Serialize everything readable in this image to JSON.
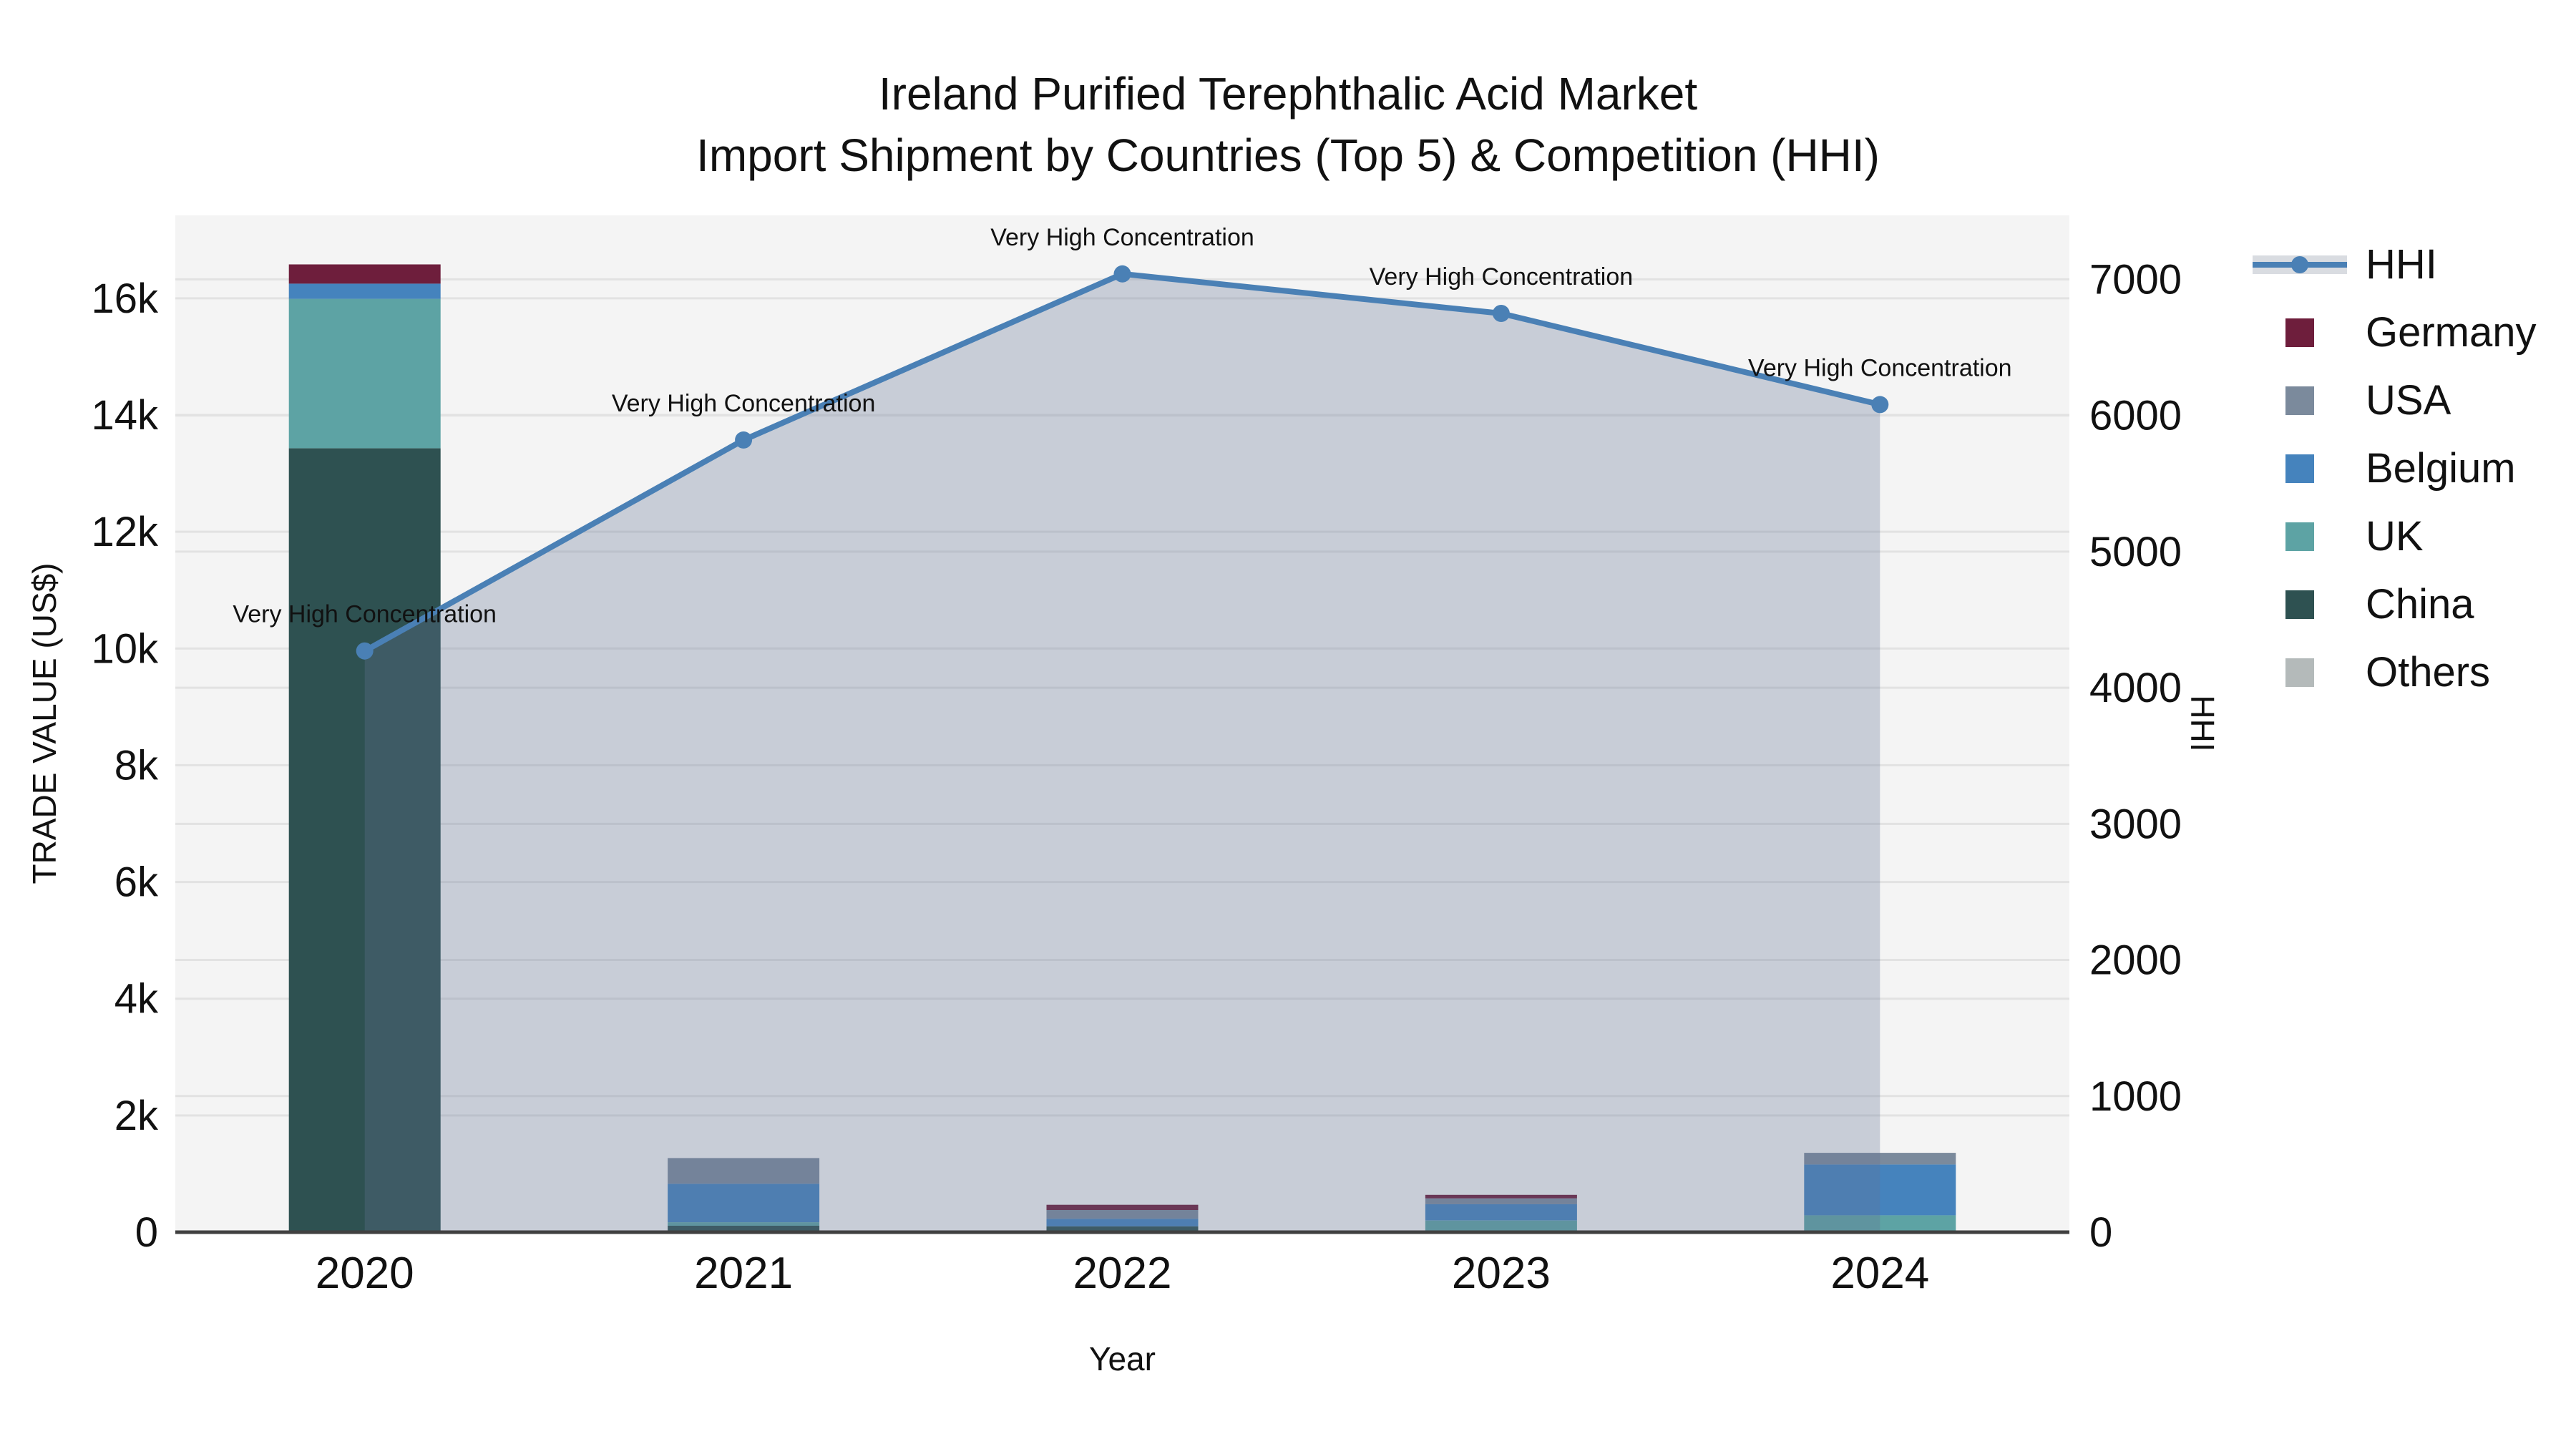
{
  "title": {
    "line1": "Ireland Purified Terephthalic Acid Market",
    "line2": "Import Shipment by Countries (Top 5) & Competition (HHI)"
  },
  "chart_data": {
    "type": "combo-stacked-bar-with-line-area",
    "x": [
      "2020",
      "2021",
      "2022",
      "2023",
      "2024"
    ],
    "xlabel": "Year",
    "left_axis": {
      "label": "TRADE VALUE (US$)",
      "max": 17420,
      "ticks": [
        {
          "v": 0,
          "label": "0"
        },
        {
          "v": 2000,
          "label": "2k"
        },
        {
          "v": 4000,
          "label": "4k"
        },
        {
          "v": 6000,
          "label": "6k"
        },
        {
          "v": 8000,
          "label": "8k"
        },
        {
          "v": 10000,
          "label": "10k"
        },
        {
          "v": 12000,
          "label": "12k"
        },
        {
          "v": 14000,
          "label": "14k"
        },
        {
          "v": 16000,
          "label": "16k"
        }
      ]
    },
    "right_axis": {
      "label": "HHI",
      "max": 7470,
      "ticks": [
        {
          "v": 0,
          "label": "0"
        },
        {
          "v": 1000,
          "label": "1000"
        },
        {
          "v": 2000,
          "label": "2000"
        },
        {
          "v": 3000,
          "label": "3000"
        },
        {
          "v": 4000,
          "label": "4000"
        },
        {
          "v": 5000,
          "label": "5000"
        },
        {
          "v": 6000,
          "label": "6000"
        },
        {
          "v": 7000,
          "label": "7000"
        }
      ]
    },
    "series": [
      {
        "name": "Germany",
        "color": "#6e1e3c",
        "values": [
          330,
          0,
          90,
          60,
          0
        ]
      },
      {
        "name": "USA",
        "color": "#7b8a9c",
        "values": [
          0,
          440,
          150,
          100,
          200
        ]
      },
      {
        "name": "Belgium",
        "color": "#4583bd",
        "values": [
          260,
          660,
          130,
          280,
          870
        ]
      },
      {
        "name": "UK",
        "color": "#5da3a4",
        "values": [
          2560,
          60,
          0,
          200,
          290
        ]
      },
      {
        "name": "China",
        "color": "#2e5151",
        "values": [
          13430,
          110,
          100,
          0,
          0
        ]
      },
      {
        "name": "Others",
        "color": "#b4baba",
        "values": [
          0,
          0,
          0,
          0,
          0
        ]
      }
    ],
    "stack_order_bottom_to_top": [
      "China",
      "UK",
      "Belgium",
      "USA",
      "Germany",
      "Others"
    ],
    "hhi": {
      "name": "HHI",
      "color": "#4a80b5",
      "area_fill": "rgba(100,116,148,0.30)",
      "values": [
        4270,
        5820,
        7040,
        6750,
        6080
      ]
    },
    "annotations": [
      "Very High Concentration",
      "Very High Concentration",
      "Very High Concentration",
      "Very High Concentration",
      "Very High Concentration"
    ],
    "legend": [
      {
        "label": "HHI",
        "type": "line"
      },
      {
        "label": "Germany",
        "type": "box"
      },
      {
        "label": "USA",
        "type": "box"
      },
      {
        "label": "Belgium",
        "type": "box"
      },
      {
        "label": "UK",
        "type": "box"
      },
      {
        "label": "China",
        "type": "box"
      },
      {
        "label": "Others",
        "type": "box"
      }
    ],
    "plot_bg": "#f4f4f4",
    "grid_color": "#e2e2e2",
    "axis_line_color": "#404040",
    "text_color": "#111111"
  }
}
